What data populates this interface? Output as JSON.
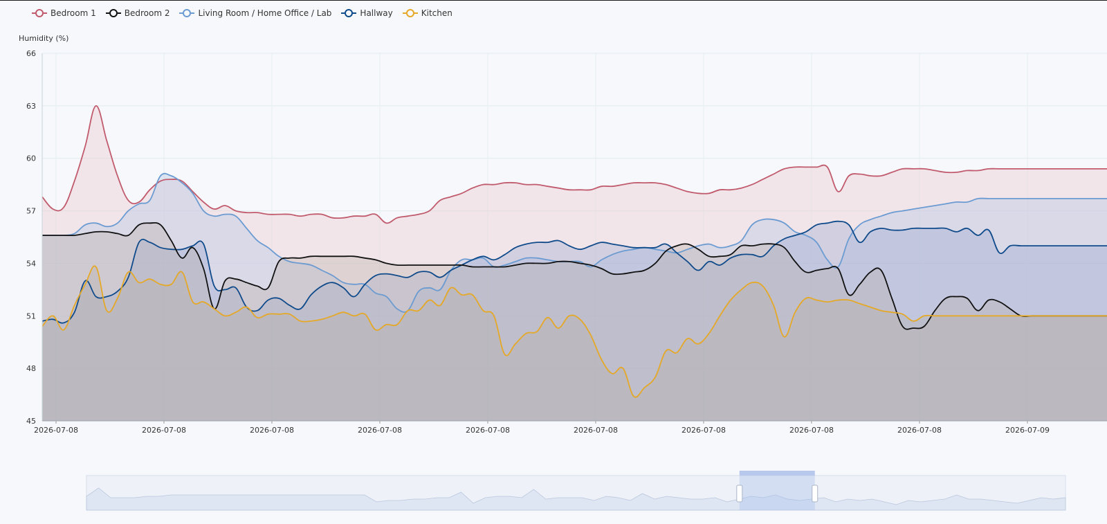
{
  "legend": [
    {
      "name": "Bedroom 1",
      "color": "#c05a6c"
    },
    {
      "name": "Bedroom 2",
      "color": "#111111"
    },
    {
      "name": "Living Room / Home Office / Lab",
      "color": "#6b9bd1"
    },
    {
      "name": "Hallway",
      "color": "#0f4a8a"
    },
    {
      "name": "Kitchen",
      "color": "#e5a827"
    }
  ],
  "chart_data": {
    "type": "area",
    "title": "",
    "ylabel": "Humidity (%)",
    "xlabel": "",
    "ylim": [
      45,
      66
    ],
    "y_ticks": [
      45,
      48,
      51,
      54,
      57,
      60,
      63,
      66
    ],
    "x_tick_labels": [
      "2026-07-08",
      "2026-07-08",
      "2026-07-08",
      "2026-07-08",
      "2026-07-08",
      "2026-07-08",
      "2026-07-08",
      "2026-07-08",
      "2026-07-08",
      "2026-07-09"
    ],
    "grid": true,
    "legend_position": "top-left",
    "x": [
      0,
      1,
      2,
      3,
      4,
      5,
      6,
      7,
      8,
      9,
      10,
      11,
      12,
      13,
      14,
      15,
      16,
      17,
      18,
      19,
      20,
      21,
      22,
      23,
      24,
      25,
      26,
      27,
      28,
      29,
      30,
      31,
      32,
      33,
      34,
      35,
      36,
      37,
      38,
      39,
      40,
      41,
      42,
      43,
      44,
      45,
      46,
      47,
      48,
      49,
      50,
      51,
      52,
      53,
      54,
      55,
      56,
      57,
      58,
      59,
      60,
      61,
      62,
      63,
      64,
      65,
      66,
      67,
      68,
      69,
      70,
      71,
      72,
      73,
      74,
      75,
      76,
      77,
      78,
      79,
      80,
      81,
      82,
      83,
      84,
      85,
      86,
      87,
      88,
      89,
      90,
      91,
      92,
      93,
      94,
      95,
      96,
      97,
      98,
      99
    ],
    "series": [
      {
        "name": "Bedroom 1",
        "color": "#c05a6c",
        "fill": "rgba(232,196,203,0.35)",
        "values": [
          57.8,
          57.1,
          57.2,
          58.7,
          60.7,
          63.0,
          61.0,
          59.0,
          57.6,
          57.5,
          58.2,
          58.7,
          58.8,
          58.7,
          58.1,
          57.5,
          57.1,
          57.3,
          57.0,
          56.9,
          56.9,
          56.8,
          56.8,
          56.8,
          56.7,
          56.8,
          56.8,
          56.6,
          56.6,
          56.7,
          56.7,
          56.8,
          56.3,
          56.6,
          56.7,
          56.8,
          57.0,
          57.6,
          57.8,
          58.0,
          58.3,
          58.5,
          58.5,
          58.6,
          58.6,
          58.5,
          58.5,
          58.4,
          58.3,
          58.2,
          58.2,
          58.2,
          58.4,
          58.4,
          58.5,
          58.6,
          58.6,
          58.6,
          58.5,
          58.3,
          58.1,
          58.0,
          58.0,
          58.2,
          58.2,
          58.3,
          58.5,
          58.8,
          59.1,
          59.4,
          59.5,
          59.5,
          59.5,
          59.5,
          58.1,
          59.0,
          59.1,
          59.0,
          59.0,
          59.2,
          59.4,
          59.4,
          59.4,
          59.3,
          59.2,
          59.2,
          59.3,
          59.3,
          59.4,
          59.4,
          59.4,
          59.4,
          59.4,
          59.4,
          59.4,
          59.4,
          59.4,
          59.4,
          59.4,
          59.4
        ]
      },
      {
        "name": "Living Room / Home Office / Lab",
        "color": "#6b9bd1",
        "fill": "rgba(176,196,228,0.35)",
        "values": [
          55.6,
          55.6,
          55.6,
          55.7,
          56.2,
          56.3,
          56.1,
          56.3,
          57.0,
          57.4,
          57.6,
          59.0,
          59.0,
          58.6,
          58.0,
          57.0,
          56.7,
          56.8,
          56.7,
          56.0,
          55.3,
          54.9,
          54.4,
          54.1,
          54.0,
          53.9,
          53.6,
          53.3,
          52.9,
          52.8,
          52.8,
          52.3,
          52.1,
          51.4,
          51.3,
          52.4,
          52.6,
          52.5,
          53.6,
          54.2,
          54.2,
          54.3,
          53.8,
          53.9,
          54.1,
          54.3,
          54.3,
          54.2,
          54.1,
          54.1,
          54.1,
          53.8,
          54.2,
          54.5,
          54.7,
          54.8,
          54.9,
          54.8,
          54.7,
          54.6,
          54.8,
          55.0,
          55.1,
          54.9,
          55.0,
          55.3,
          56.2,
          56.5,
          56.5,
          56.3,
          55.8,
          55.6,
          55.2,
          54.2,
          53.8,
          55.4,
          56.2,
          56.5,
          56.7,
          56.9,
          57.0,
          57.1,
          57.2,
          57.3,
          57.4,
          57.5,
          57.5,
          57.7,
          57.7,
          57.7,
          57.7,
          57.7,
          57.7,
          57.7,
          57.7,
          57.7,
          57.7,
          57.7,
          57.7,
          57.7
        ]
      },
      {
        "name": "Hallway",
        "color": "#0f4a8a",
        "fill": "rgba(150,166,205,0.35)",
        "values": [
          50.7,
          50.8,
          50.6,
          51.2,
          53.0,
          52.1,
          52.1,
          52.4,
          53.2,
          55.2,
          55.2,
          54.9,
          54.8,
          54.8,
          55.0,
          55.1,
          52.7,
          52.5,
          52.6,
          51.5,
          51.3,
          51.9,
          52.0,
          51.6,
          51.4,
          52.2,
          52.7,
          52.9,
          52.6,
          52.1,
          52.8,
          53.3,
          53.4,
          53.3,
          53.2,
          53.5,
          53.5,
          53.2,
          53.6,
          53.9,
          54.2,
          54.4,
          54.2,
          54.5,
          54.9,
          55.1,
          55.2,
          55.2,
          55.3,
          55.0,
          54.8,
          55.0,
          55.2,
          55.1,
          55.0,
          54.9,
          54.9,
          54.9,
          55.1,
          54.6,
          54.1,
          53.6,
          54.1,
          53.9,
          54.3,
          54.5,
          54.5,
          54.4,
          55.0,
          55.4,
          55.6,
          55.8,
          56.2,
          56.3,
          56.4,
          56.2,
          55.2,
          55.8,
          56.0,
          55.9,
          55.9,
          56.0,
          56.0,
          56.0,
          56.0,
          55.8,
          56.0,
          55.6,
          55.9,
          54.6,
          55.0,
          55.0,
          55.0,
          55.0,
          55.0,
          55.0,
          55.0,
          55.0,
          55.0,
          55.0
        ]
      },
      {
        "name": "Bedroom 2",
        "color": "#111111",
        "fill": "rgba(185,175,168,0.35)",
        "values": [
          55.6,
          55.6,
          55.6,
          55.6,
          55.7,
          55.8,
          55.8,
          55.7,
          55.6,
          56.2,
          56.3,
          56.2,
          55.3,
          54.3,
          54.9,
          53.7,
          51.4,
          53.0,
          53.1,
          52.9,
          52.7,
          52.6,
          54.1,
          54.3,
          54.3,
          54.4,
          54.4,
          54.4,
          54.4,
          54.4,
          54.3,
          54.2,
          54.0,
          53.9,
          53.9,
          53.9,
          53.9,
          53.9,
          53.9,
          53.9,
          53.8,
          53.8,
          53.8,
          53.8,
          53.9,
          54.0,
          54.0,
          54.0,
          54.1,
          54.1,
          54.0,
          53.9,
          53.7,
          53.4,
          53.4,
          53.5,
          53.6,
          54.0,
          54.7,
          55.0,
          55.1,
          54.8,
          54.4,
          54.4,
          54.5,
          55.0,
          55.0,
          55.1,
          55.1,
          54.9,
          54.1,
          53.5,
          53.6,
          53.7,
          53.7,
          52.2,
          52.8,
          53.5,
          53.6,
          52.0,
          50.4,
          50.3,
          50.4,
          51.3,
          52.0,
          52.1,
          52.0,
          51.3,
          51.9,
          51.8,
          51.4,
          51.0,
          51.0,
          51.0,
          51.0,
          51.0,
          51.0,
          51.0,
          51.0,
          51.0
        ]
      },
      {
        "name": "Kitchen",
        "color": "#e5a827",
        "fill": "rgba(180,175,170,0.35)",
        "values": [
          50.4,
          51.0,
          50.2,
          51.6,
          52.8,
          53.8,
          51.3,
          52.0,
          53.5,
          52.9,
          53.1,
          52.8,
          52.8,
          53.5,
          51.8,
          51.8,
          51.4,
          51.0,
          51.2,
          51.5,
          50.9,
          51.1,
          51.1,
          51.1,
          50.7,
          50.7,
          50.8,
          51.0,
          51.2,
          51.0,
          51.1,
          50.2,
          50.5,
          50.5,
          51.3,
          51.3,
          51.9,
          51.6,
          52.6,
          52.2,
          52.2,
          51.3,
          51.0,
          48.8,
          49.4,
          50.0,
          50.1,
          50.9,
          50.3,
          51.0,
          50.8,
          49.9,
          48.5,
          47.7,
          48.0,
          46.4,
          46.9,
          47.5,
          49.0,
          48.9,
          49.7,
          49.4,
          50.0,
          51.0,
          51.9,
          52.5,
          52.9,
          52.7,
          51.6,
          49.8,
          51.2,
          52.0,
          51.9,
          51.8,
          51.9,
          51.9,
          51.7,
          51.5,
          51.3,
          51.2,
          51.1,
          50.7,
          51.0,
          51.0,
          51.0,
          51.0,
          51.0,
          51.0,
          51.0,
          51.0,
          51.0,
          51.0,
          51.0,
          51.0,
          51.0,
          51.0,
          51.0,
          51.0,
          51.0,
          51.0
        ]
      }
    ]
  },
  "navigator": {
    "overview_values": [
      0.4,
      0.7,
      0.35,
      0.35,
      0.35,
      0.4,
      0.4,
      0.45,
      0.45,
      0.45,
      0.45,
      0.45,
      0.45,
      0.45,
      0.45,
      0.45,
      0.45,
      0.45,
      0.45,
      0.45,
      0.45,
      0.45,
      0.45,
      0.45,
      0.2,
      0.25,
      0.25,
      0.3,
      0.3,
      0.35,
      0.35,
      0.55,
      0.15,
      0.35,
      0.4,
      0.4,
      0.35,
      0.65,
      0.3,
      0.35,
      0.35,
      0.35,
      0.25,
      0.4,
      0.35,
      0.25,
      0.5,
      0.3,
      0.4,
      0.35,
      0.3,
      0.3,
      0.35,
      0.2,
      0.3,
      0.4,
      0.35,
      0.45,
      0.3,
      0.25,
      0.3,
      0.35,
      0.2,
      0.3,
      0.25,
      0.3,
      0.2,
      0.1,
      0.25,
      0.2,
      0.25,
      0.3,
      0.45,
      0.3,
      0.3,
      0.25,
      0.2,
      0.15,
      0.25,
      0.35,
      0.3,
      0.35
    ],
    "window_start": 0.667,
    "window_end": 0.744
  }
}
